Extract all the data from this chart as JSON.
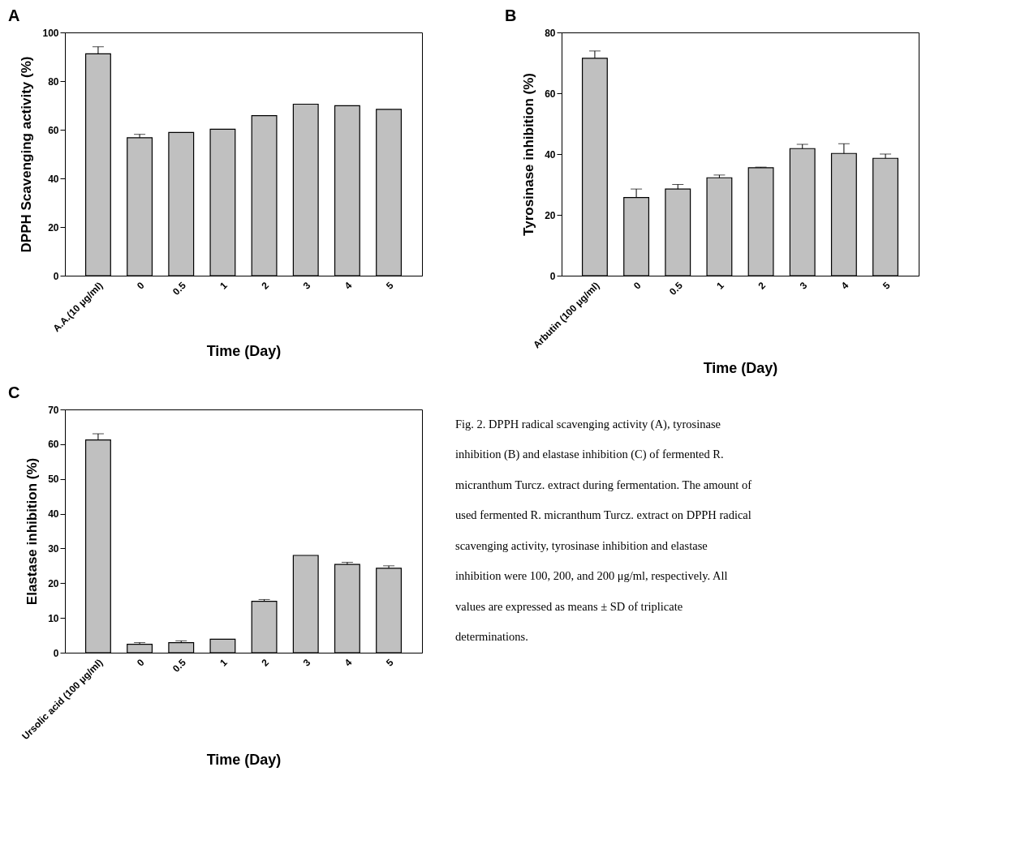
{
  "chart_data": [
    {
      "type": "bar",
      "title": "A",
      "xlabel": "Time (Day)",
      "ylabel": "DPPH Scavenging activity (%)",
      "color": "#c0c0c0",
      "categories": [
        "A.A.(10 μg/ml)",
        "0",
        "0.5",
        "1",
        "2",
        "3",
        "4",
        "5"
      ],
      "values": [
        91.2,
        56.7,
        58.9,
        60.2,
        65.8,
        70.5,
        69.9,
        68.4
      ],
      "errors": [
        2.9,
        1.4,
        null,
        null,
        null,
        null,
        null,
        null
      ],
      "ylim": [
        0,
        100
      ],
      "yticks": [
        0,
        20,
        40,
        60,
        80,
        100
      ]
    },
    {
      "type": "bar",
      "title": "B",
      "xlabel": "Time (Day)",
      "ylabel": "Tyrosinase inhibition (%)",
      "color": "#c0c0c0",
      "categories": [
        "Arbutin (100 μg/ml)",
        "0",
        "0.5",
        "1",
        "2",
        "3",
        "4",
        "5"
      ],
      "values": [
        71.5,
        25.7,
        28.5,
        32.2,
        35.5,
        41.8,
        40.2,
        38.6
      ],
      "errors": [
        2.4,
        2.8,
        1.5,
        0.9,
        0.2,
        1.4,
        3.2,
        1.4
      ],
      "ylim": [
        0,
        80
      ],
      "yticks": [
        0,
        20,
        40,
        60,
        80
      ]
    },
    {
      "type": "bar",
      "title": "C",
      "xlabel": "Time (Day)",
      "ylabel": "Elastase inhibition (%)",
      "color": "#c0c0c0",
      "categories": [
        "Ursolic acid (100 μg/ml)",
        "0",
        "0.5",
        "1",
        "2",
        "3",
        "4",
        "5"
      ],
      "values": [
        61.2,
        2.4,
        2.9,
        3.9,
        14.8,
        28.0,
        25.4,
        24.3
      ],
      "errors": [
        1.8,
        0.5,
        0.5,
        null,
        0.5,
        null,
        0.6,
        0.7
      ],
      "ylim": [
        0,
        70
      ],
      "yticks": [
        0,
        10,
        20,
        30,
        40,
        50,
        60,
        70
      ],
      "annotations": [
        "Fig. 2. DPPH radical scavenging activity (A), tyrosinase inhibition (B) and elastase inhibition (C) of fermented R. micranthum Turcz. extract during fermentation. The amount of used fermented R. micranthum Turcz. extract on DPPH radical scavenging activity, tyrosinase inhibition and elastase inhibition were 100, 200, and 200 μg/ml, respectively. All values are expressed as means ± SD of triplicate determinations."
      ]
    }
  ]
}
